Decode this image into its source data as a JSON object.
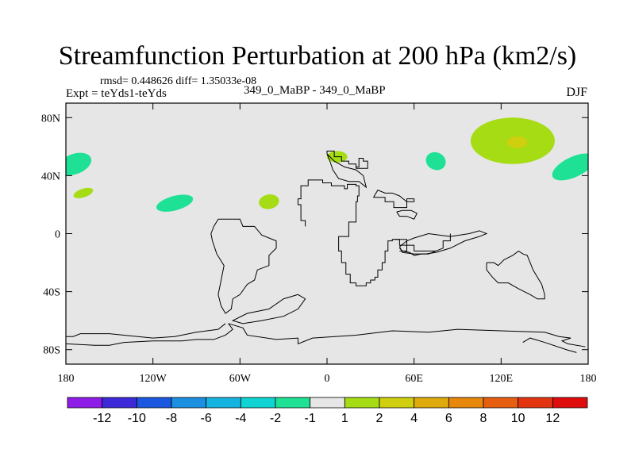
{
  "title": "Streamfunction Perturbation at 200 hPa (km2/s)",
  "stats": "rmsd= 0.448626 diff= 1.35033e-08",
  "experiment": "Expt = teYds1-teYds",
  "comparison": "349_0_MaBP - 349_0_MaBP",
  "season": "DJF",
  "colors": {
    "background": "#e6e6e6",
    "frame": "#000000",
    "coast": "#000000"
  },
  "chart_data": {
    "type": "heatmap",
    "projection": "cylindrical equidistant",
    "xlim": [
      -180,
      180
    ],
    "ylim": [
      -90,
      90
    ],
    "x_ticks": [
      -180,
      -120,
      -60,
      0,
      60,
      120,
      180
    ],
    "x_tick_labels": [
      "180",
      "120W",
      "60W",
      "0",
      "60E",
      "120E",
      "180"
    ],
    "y_ticks": [
      80,
      40,
      0,
      -40,
      -80
    ],
    "y_tick_labels": [
      "80N",
      "40N",
      "0",
      "40S",
      "80S"
    ],
    "levels": [
      -12,
      -10,
      -8,
      -6,
      -4,
      -2,
      -1,
      1,
      2,
      4,
      6,
      8,
      10,
      12
    ],
    "level_labels": [
      "-12",
      "-10",
      "-8",
      "-6",
      "-4",
      "-2",
      "-1",
      "1",
      "2",
      "4",
      "6",
      "8",
      "10",
      "12"
    ],
    "fill_colors": [
      "#8f1de8",
      "#3d29d8",
      "#1c57e0",
      "#1b8fe0",
      "#15b4e0",
      "#10d4d4",
      "#1ee196",
      "#e6e6e6",
      "#a5dc14",
      "#d0cf0f",
      "#dfab0c",
      "#e7870b",
      "#e75e10",
      "#e2350f",
      "#df0c0c"
    ],
    "anomalies": [
      {
        "lon": -174,
        "lat": 48,
        "rlon": 12,
        "rlat": 7,
        "rot": -20,
        "color": "#1ee196",
        "level": "-2 to -1"
      },
      {
        "lon": -168,
        "lat": 28,
        "rlon": 7,
        "rlat": 3,
        "rot": -18,
        "color": "#a5dc14",
        "level": "1 to 2"
      },
      {
        "lon": -105,
        "lat": 21,
        "rlon": 13,
        "rlat": 5,
        "rot": -15,
        "color": "#1ee196",
        "level": "-2 to -1"
      },
      {
        "lon": -40,
        "lat": 22,
        "rlon": 7,
        "rlat": 5,
        "rot": -10,
        "color": "#a5dc14",
        "level": "1 to 2"
      },
      {
        "lon": 7,
        "lat": 53,
        "rlon": 7,
        "rlat": 4,
        "rot": 0,
        "color": "#a5dc14",
        "level": "1 to 2"
      },
      {
        "lon": 75,
        "lat": 50,
        "rlon": 7,
        "rlat": 6,
        "rot": 25,
        "color": "#1ee196",
        "level": "-2 to -1"
      },
      {
        "lon": 128,
        "lat": 64,
        "rlon": 29,
        "rlat": 16,
        "rot": 0,
        "color": "#a5dc14",
        "level": "1 to 2",
        "core": {
          "lon": 131,
          "lat": 63,
          "rlon": 7,
          "rlat": 4,
          "color": "#d0cf0f"
        }
      },
      {
        "lon": 170,
        "lat": 46,
        "rlon": 16,
        "rlat": 7,
        "rot": -25,
        "color": "#1ee196",
        "level": "-2 to -1"
      }
    ]
  }
}
